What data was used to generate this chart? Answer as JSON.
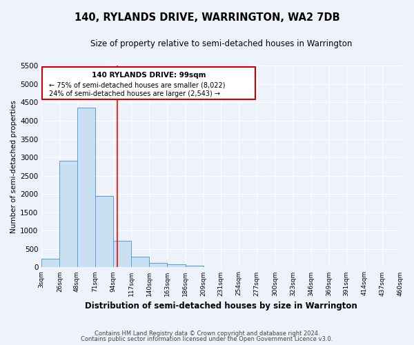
{
  "title": "140, RYLANDS DRIVE, WARRINGTON, WA2 7DB",
  "subtitle": "Size of property relative to semi-detached houses in Warrington",
  "xlabel": "Distribution of semi-detached houses by size in Warrington",
  "ylabel": "Number of semi-detached properties",
  "property_label": "140 RYLANDS DRIVE: 99sqm",
  "annotation_line1": "← 75% of semi-detached houses are smaller (8,022)",
  "annotation_line2": "24% of semi-detached houses are larger (2,543) →",
  "bin_edges": [
    3,
    26,
    48,
    71,
    94,
    117,
    140,
    163,
    186,
    209,
    231,
    254,
    277,
    300,
    323,
    346,
    369,
    391,
    414,
    437,
    460
  ],
  "bin_counts": [
    230,
    2900,
    4350,
    1950,
    730,
    290,
    130,
    75,
    50,
    0,
    0,
    0,
    0,
    0,
    0,
    0,
    0,
    0,
    0,
    0
  ],
  "bar_color": "#c9dff2",
  "bar_edge_color": "#5b9bd5",
  "red_line_x": 99,
  "annotation_box_color": "#ffffff",
  "annotation_box_edge": "#cc0000",
  "background_color": "#eef2fb",
  "grid_color": "#ffffff",
  "ylim": [
    0,
    5500
  ],
  "yticks": [
    0,
    500,
    1000,
    1500,
    2000,
    2500,
    3000,
    3500,
    4000,
    4500,
    5000,
    5500
  ],
  "footer_line1": "Contains HM Land Registry data © Crown copyright and database right 2024.",
  "footer_line2": "Contains public sector information licensed under the Open Government Licence v3.0."
}
